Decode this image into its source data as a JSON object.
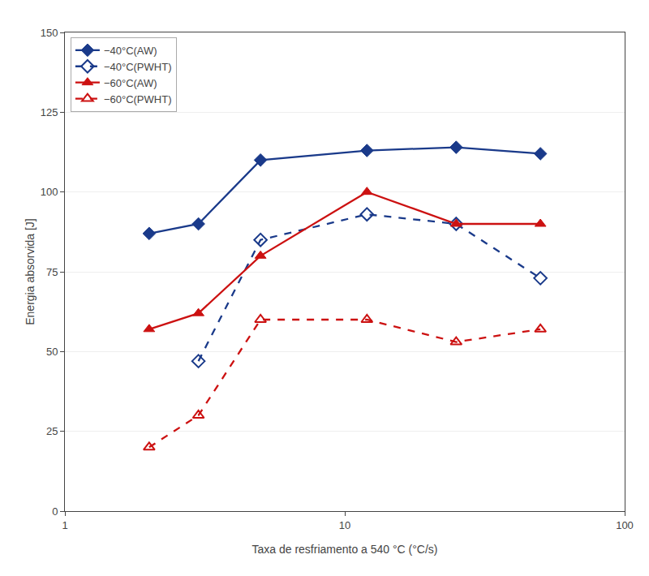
{
  "chart_data": {
    "type": "line",
    "xlabel": "Taxa de resfriamento a 540 °C (°C/s)",
    "ylabel": "Energia absorvida [J]",
    "log": "x",
    "xlim": [
      1,
      100
    ],
    "xticks": [
      1,
      10,
      100
    ],
    "ylim": [
      0,
      150
    ],
    "yticks": [
      0,
      25,
      50,
      75,
      100,
      125,
      150
    ],
    "grid": "y",
    "legend": "upper left",
    "series": [
      {
        "name": "−40°C(AW)",
        "x": [
          2.0,
          3.0,
          5.0,
          12.0,
          25.0,
          50.0
        ],
        "values": [
          87,
          90,
          110,
          113,
          114,
          112
        ],
        "color": "#1a3a8a",
        "marker": "diamond",
        "line_style": "solid"
      },
      {
        "name": "−40°C(PWHT)",
        "x": [
          3.0,
          5.0,
          12.0,
          25.0,
          50.0
        ],
        "values": [
          47,
          85,
          93,
          90,
          73
        ],
        "color": "#1a3a8a",
        "marker": "diamond-open",
        "line_style": "dash"
      },
      {
        "name": "−60°C(AW)",
        "x": [
          2.0,
          3.0,
          5.0,
          12.0,
          25.0,
          50.0
        ],
        "values": [
          57,
          62,
          80,
          100,
          90,
          90
        ],
        "color": "#cc1111",
        "marker": "triangle-up",
        "line_style": "solid"
      },
      {
        "name": "−60°C(PWHT)",
        "x": [
          2.0,
          3.0,
          5.0,
          12.0,
          25.0,
          50.0
        ],
        "values": [
          20,
          30,
          60,
          60,
          53,
          57
        ],
        "color": "#cc1111",
        "marker": "triangle-up-open",
        "line_style": "dash"
      }
    ]
  }
}
